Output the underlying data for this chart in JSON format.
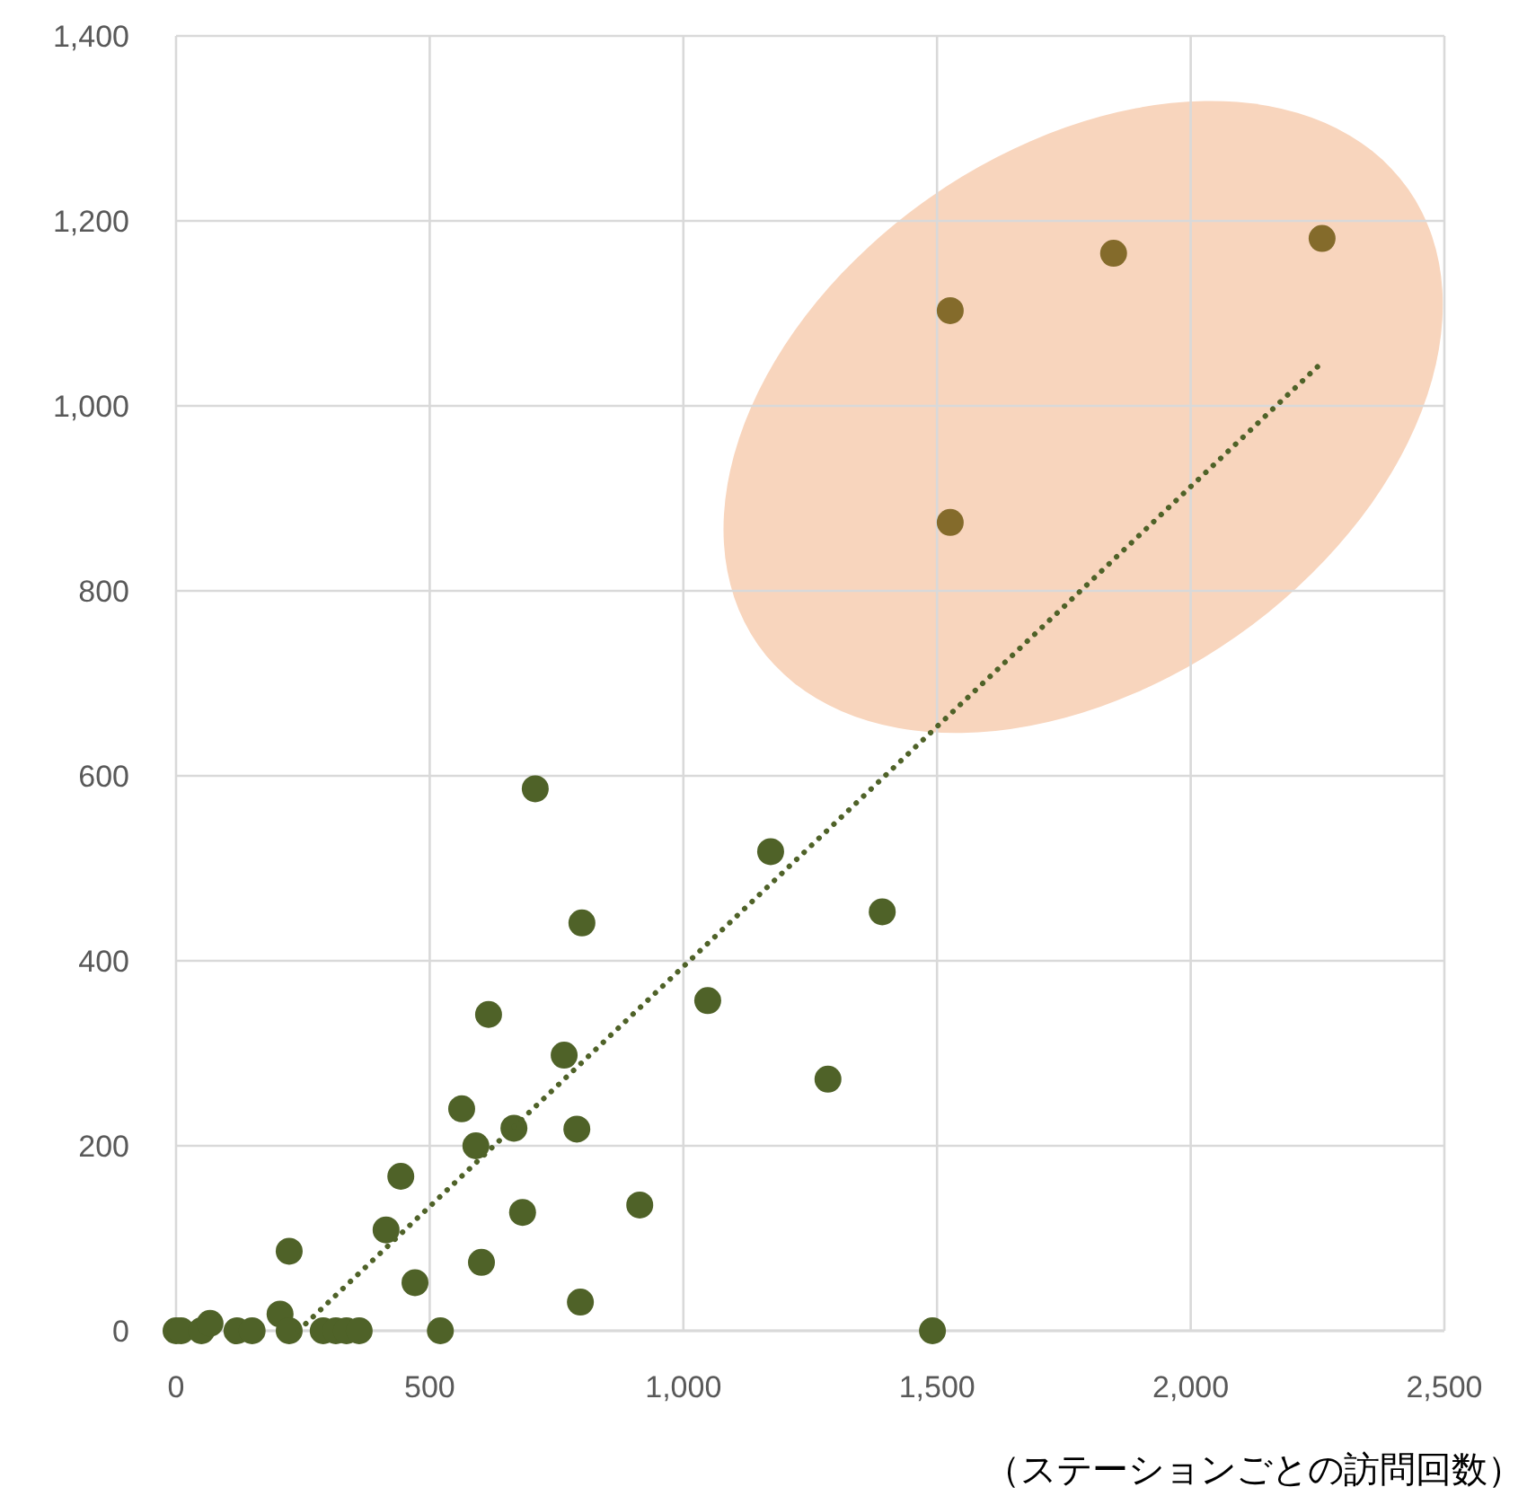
{
  "chart_data": {
    "type": "scatter",
    "xlabel": "（ステーションごとの訪問回数）",
    "xlim": [
      0,
      2500
    ],
    "ylim": [
      0,
      1400
    ],
    "xticks": [
      0,
      500,
      {
        "value": 1000,
        "label": "1,000"
      },
      {
        "value": 1500,
        "label": "1,500"
      },
      {
        "value": 2000,
        "label": "2,000"
      },
      {
        "value": 2500,
        "label": "2,500"
      }
    ],
    "yticks": [
      0,
      200,
      400,
      600,
      800,
      {
        "value": 1000,
        "label": "1,000"
      },
      {
        "value": 1200,
        "label": "1,200"
      },
      {
        "value": 1400,
        "label": "1,400"
      }
    ],
    "grid": true,
    "marker": "circle",
    "series": [
      {
        "color": "#4f6228",
        "x": [
          0,
          10,
          50,
          67,
          120,
          150,
          205,
          223,
          223,
          290,
          315,
          336,
          361,
          414,
          443,
          471,
          521,
          563,
          591,
          602,
          616,
          666,
          683,
          708,
          765,
          790,
          797,
          800,
          914,
          1048,
          1172,
          1285,
          1392,
          1491,
          1526,
          1526,
          1848,
          2259
        ],
        "values": [
          0,
          0,
          0,
          8,
          0,
          0,
          18,
          86,
          0,
          0,
          0,
          0,
          0,
          109,
          167,
          52,
          0,
          240,
          200,
          74,
          342,
          219,
          128,
          586,
          298,
          218,
          31,
          441,
          136,
          357,
          518,
          272,
          453,
          0,
          1103,
          874,
          1165,
          1181
        ],
        "colors": [
          null,
          null,
          null,
          null,
          null,
          null,
          null,
          null,
          null,
          null,
          null,
          null,
          null,
          null,
          null,
          null,
          null,
          null,
          null,
          null,
          null,
          null,
          null,
          null,
          null,
          null,
          null,
          null,
          null,
          null,
          null,
          null,
          null,
          null,
          "#846b2b",
          "#846b2b",
          "#846b2b",
          "#846b2b"
        ]
      },
      {
        "type": "line",
        "color": "#4f6228",
        "line_style": "dotted",
        "marker": "none",
        "x": [
          241,
          2259
        ],
        "values": [
          0,
          1047
        ]
      }
    ]
  }
}
